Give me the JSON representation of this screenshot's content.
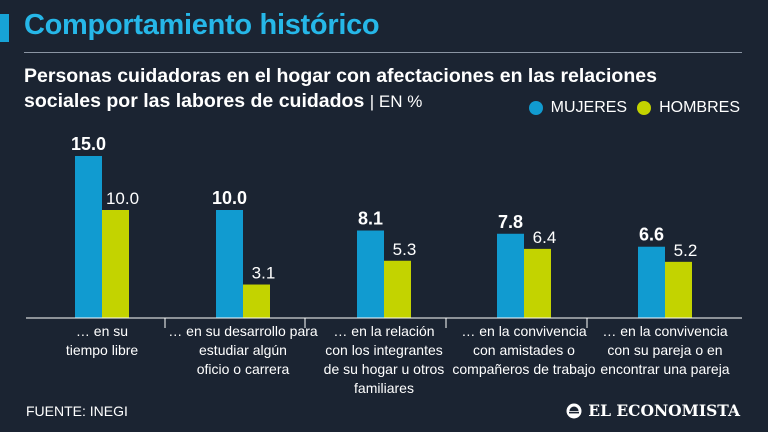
{
  "header": {
    "title": "Comportamiento histórico",
    "subtitle_line1": "Personas cuidadoras en el hogar con afectaciones en las relaciones",
    "subtitle_line2": "sociales por las labores de cuidados",
    "unit": "| EN %"
  },
  "legend": {
    "mujeres": "MUJERES",
    "hombres": "HOMBRES"
  },
  "colors": {
    "background": "#1b2432",
    "mujeres": "#119bd0",
    "hombres": "#c3d300",
    "title": "#26b7e8",
    "text": "#ffffff",
    "rule": "#8b95a3"
  },
  "footer": {
    "source": "FUENTE: INEGI",
    "brand": "EL ECONOMISTA"
  },
  "chart_data": {
    "type": "bar",
    "title": "Personas cuidadoras en el hogar con afectaciones en las relaciones sociales por las labores de cuidados",
    "ylabel": "%",
    "ylim": [
      0,
      15
    ],
    "categories": [
      [
        "… en su",
        "tiempo libre"
      ],
      [
        "… en su desarrollo para",
        "estudiar algún",
        "oficio o carrera"
      ],
      [
        "… en la relación",
        "con los integrantes",
        "de su hogar u otros",
        "familiares"
      ],
      [
        "… en la convivencia",
        "con amistades o",
        "compañeros de trabajo"
      ],
      [
        "… en la convivencia",
        "con su pareja o en",
        "encontrar una pareja"
      ]
    ],
    "series": [
      {
        "name": "MUJERES",
        "values": [
          15.0,
          10.0,
          8.1,
          7.8,
          6.6
        ],
        "labels": [
          "15.0",
          "10.0",
          "8.1",
          "7.8",
          "6.6"
        ]
      },
      {
        "name": "HOMBRES",
        "values": [
          10.0,
          3.1,
          5.3,
          6.4,
          5.2
        ],
        "labels": [
          "10.0",
          "3.1",
          "5.3",
          "6.4",
          "5.2"
        ]
      }
    ]
  }
}
